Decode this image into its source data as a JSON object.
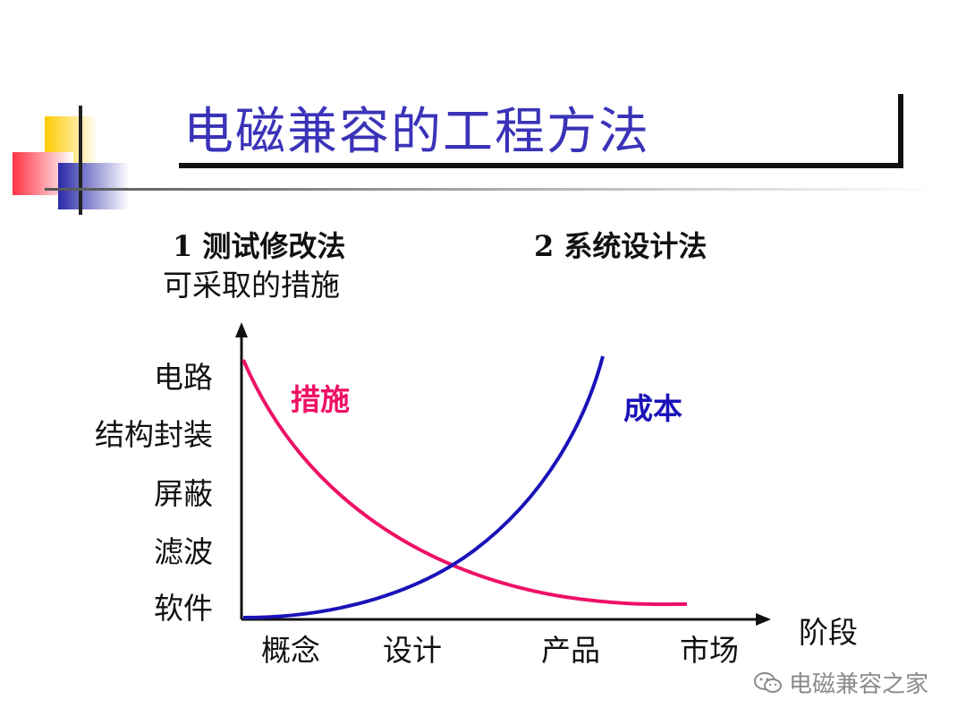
{
  "title": "电磁兼容的工程方法",
  "methods": [
    "1 测试修改法",
    "2 系统设计法"
  ],
  "subtitle": "可采取的措施",
  "measures": [
    "电路",
    "结构封装",
    "屏蔽",
    "滤波",
    "软件"
  ],
  "stages": [
    "概念",
    "设计",
    "产品",
    "市场"
  ],
  "x_axis_label": "阶段",
  "curves": {
    "measures_label": "措施",
    "cost_label": "成本"
  },
  "colors": {
    "title": "#3a33b8",
    "measures_curve": "#ee1166",
    "cost_curve": "#1a12b8"
  },
  "watermark": "电磁兼容之家",
  "watermark_icon": "wechat-icon"
}
